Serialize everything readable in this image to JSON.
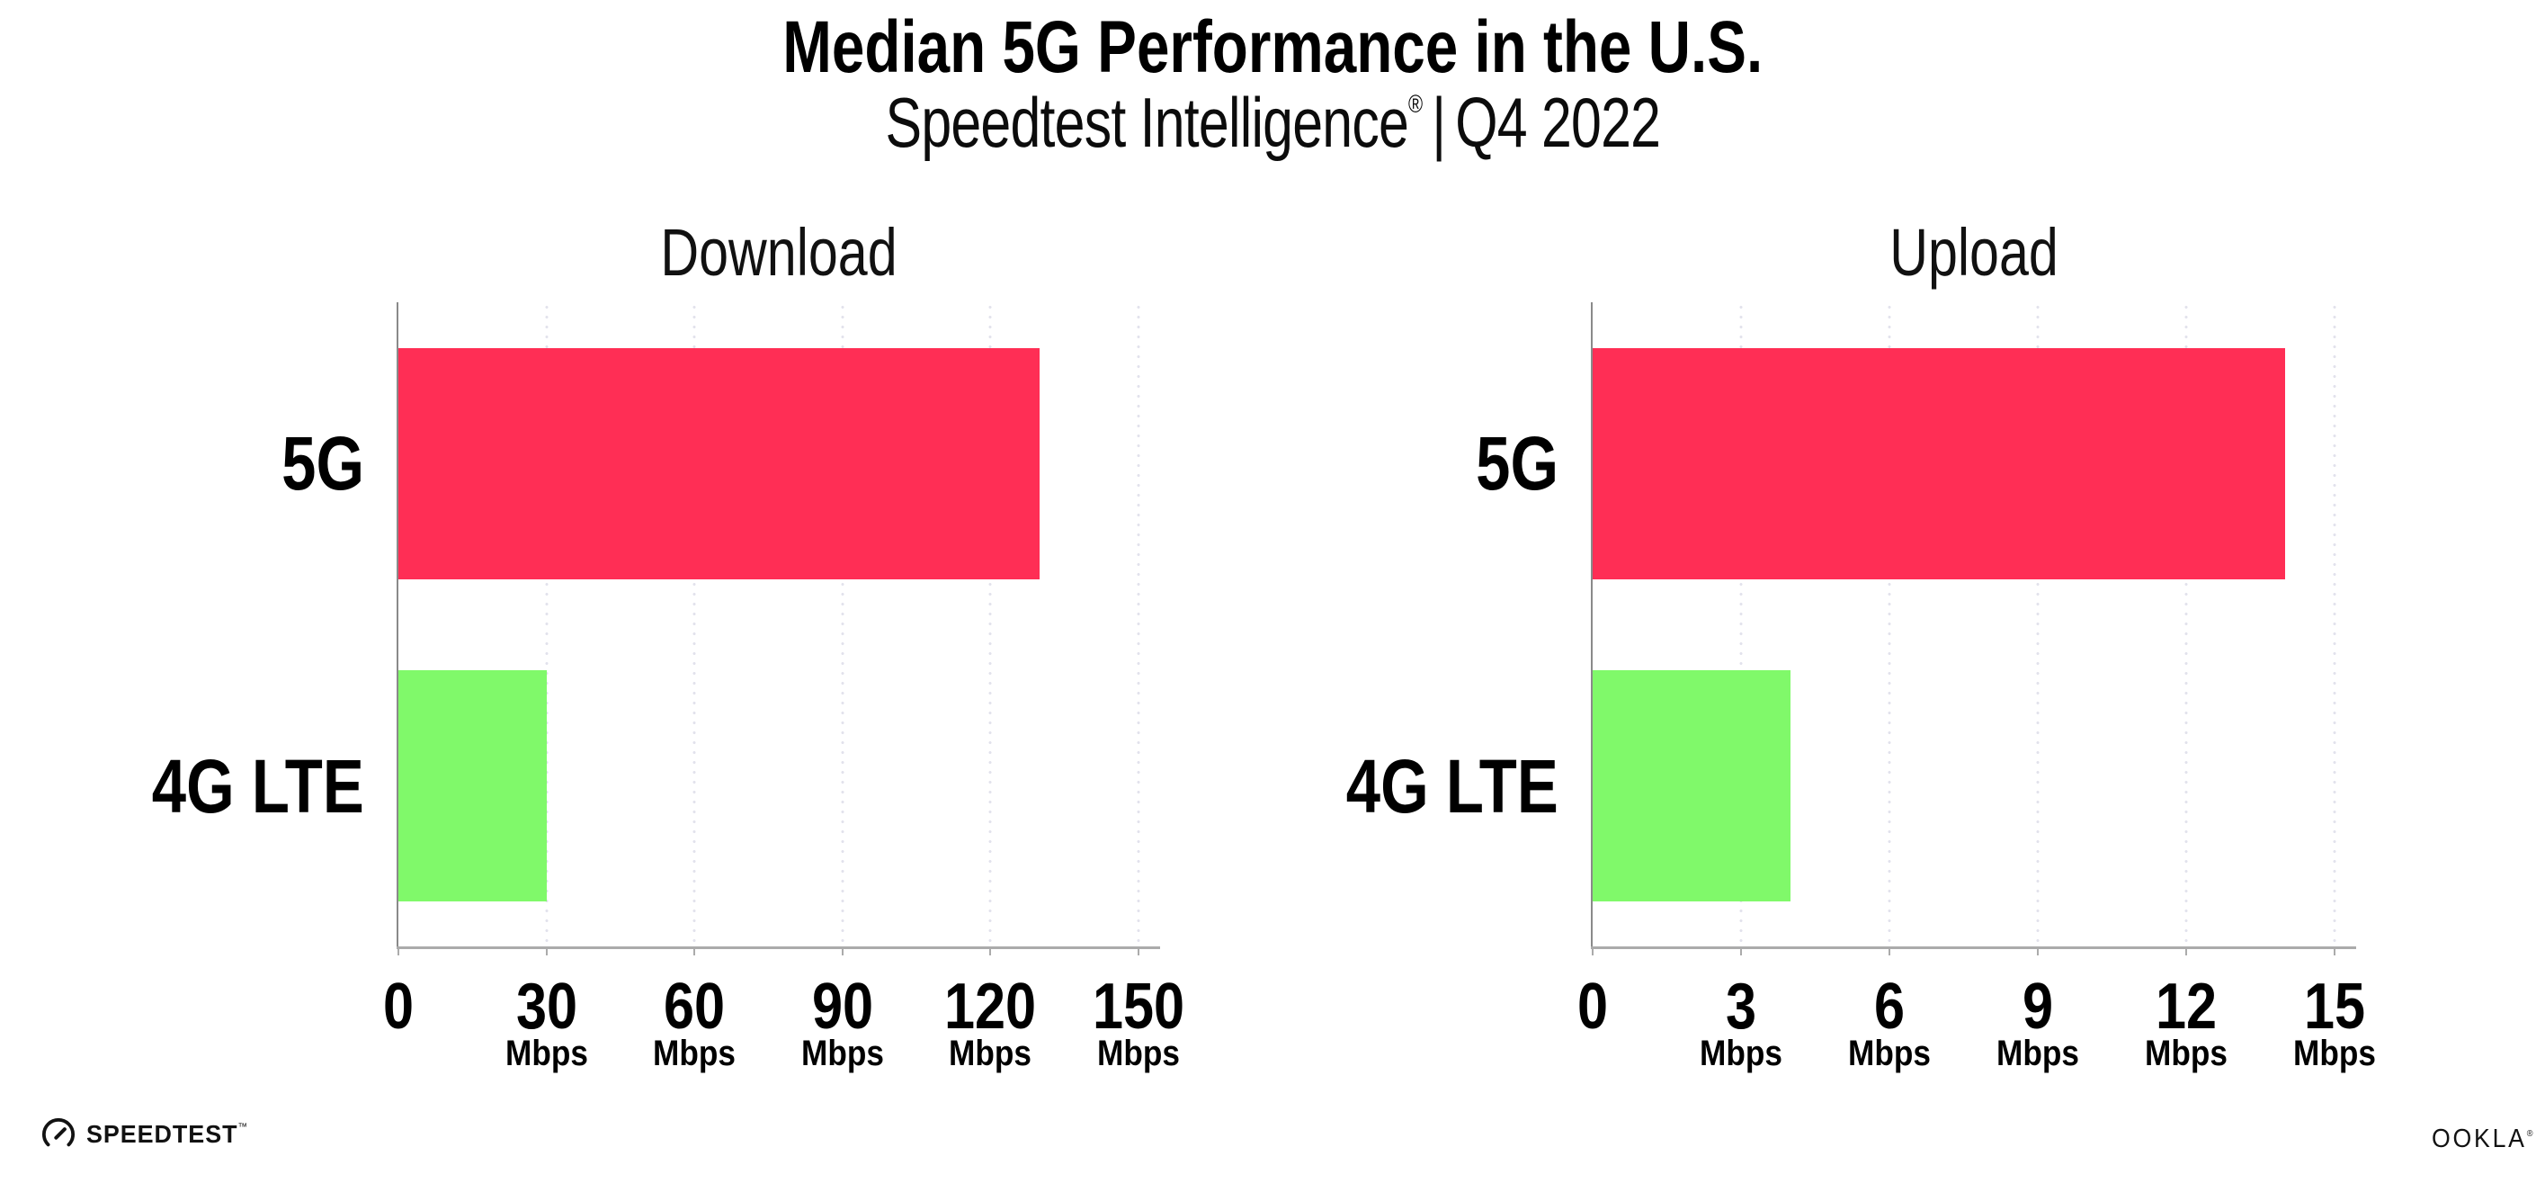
{
  "header": {
    "title": "Median 5G Performance in the U.S.",
    "subtitle_brand": "Speedtest Intelligence",
    "subtitle_reg": "®",
    "subtitle_separator": "|",
    "subtitle_period": "Q4 2022"
  },
  "colors": {
    "bar_5g": "#FF2E55",
    "bar_4g_lte": "#80F96A",
    "gridline": "#E2E2EC",
    "axis_line": "#ABABAB",
    "axis_spine": "#8A8A8A",
    "text": "#000000"
  },
  "chart_data": [
    {
      "type": "bar",
      "orientation": "horizontal",
      "title": "Download",
      "categories": [
        "5G",
        "4G LTE"
      ],
      "values": [
        130,
        30
      ],
      "unit": "Mbps",
      "xticks": [
        0,
        30,
        60,
        90,
        120,
        150
      ],
      "xlim": [
        0,
        154
      ],
      "grid": "vertical-dotted",
      "legend": "none",
      "bar_colors": [
        "#FF2E55",
        "#80F96A"
      ]
    },
    {
      "type": "bar",
      "orientation": "horizontal",
      "title": "Upload",
      "categories": [
        "5G",
        "4G LTE"
      ],
      "values": [
        14,
        4
      ],
      "unit": "Mbps",
      "xticks": [
        0,
        3,
        6,
        9,
        12,
        15
      ],
      "xlim": [
        0,
        15.4
      ],
      "grid": "vertical-dotted",
      "legend": "none",
      "bar_colors": [
        "#FF2E55",
        "#80F96A"
      ]
    }
  ],
  "footer": {
    "speedtest_label": "SPEEDTEST",
    "speedtest_mark": "™",
    "ookla_label": "OOKLA",
    "ookla_mark": "®"
  }
}
